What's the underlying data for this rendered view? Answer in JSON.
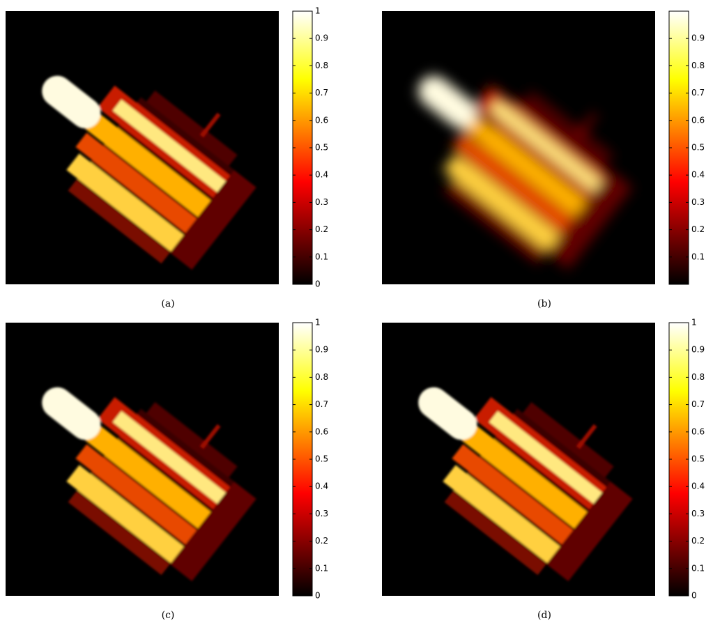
{
  "panels": [
    {
      "caption": "(a)",
      "colorbar": {
        "lim": [
          0,
          1
        ],
        "ticks": [
          0,
          0.1,
          0.2,
          0.3,
          0.4,
          0.5,
          0.6,
          0.7,
          0.8,
          0.9,
          1
        ]
      }
    },
    {
      "caption": "(b)",
      "colorbar": {
        "lim": [
          0,
          1
        ],
        "ticks": [
          0.1,
          0.2,
          0.3,
          0.4,
          0.5,
          0.6,
          0.7,
          0.8,
          0.9
        ]
      }
    },
    {
      "caption": "(c)",
      "colorbar": {
        "lim": [
          0,
          1
        ],
        "ticks": [
          0,
          0.1,
          0.2,
          0.3,
          0.4,
          0.5,
          0.6,
          0.7,
          0.8,
          0.9,
          1
        ]
      }
    },
    {
      "caption": "(d)",
      "colorbar": {
        "lim": [
          0,
          1
        ],
        "ticks": [
          0,
          0.1,
          0.2,
          0.3,
          0.4,
          0.5,
          0.6,
          0.7,
          0.8,
          0.9,
          1
        ]
      }
    }
  ]
}
